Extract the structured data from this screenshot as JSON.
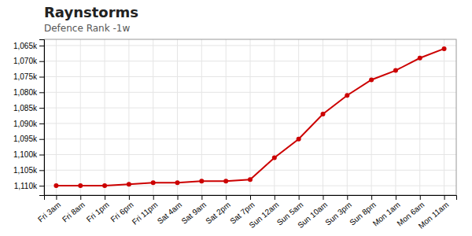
{
  "chart_data": {
    "type": "line",
    "title": "Raynstorms",
    "subtitle": "Defence Rank -1w",
    "categories": [
      "Fri 3am",
      "Fri 8am",
      "Fri 1pm",
      "Fri 6pm",
      "Fri 11pm",
      "Sat 4am",
      "Sat 9am",
      "Sat 2pm",
      "Sat 7pm",
      "Sun 12am",
      "Sun 5am",
      "Sun 10am",
      "Sun 3pm",
      "Sun 8pm",
      "Mon 1am",
      "Mon 6am",
      "Mon 11am"
    ],
    "values": [
      1110000,
      1110000,
      1110000,
      1109500,
      1109000,
      1109000,
      1108500,
      1108500,
      1108000,
      1101000,
      1095000,
      1087000,
      1081000,
      1076000,
      1073000,
      1069000,
      1066000
    ],
    "color": "#cc0000",
    "marker": "circle",
    "ylim": [
      1113000,
      1063000
    ],
    "yticks": [
      {
        "value": 1065000,
        "label": "1,065k"
      },
      {
        "value": 1070000,
        "label": "1,070k"
      },
      {
        "value": 1075000,
        "label": "1,075k"
      },
      {
        "value": 1080000,
        "label": "1,080k"
      },
      {
        "value": 1085000,
        "label": "1,085k"
      },
      {
        "value": 1090000,
        "label": "1,090k"
      },
      {
        "value": 1095000,
        "label": "1,095k"
      },
      {
        "value": 1100000,
        "label": "1,100k"
      },
      {
        "value": 1105000,
        "label": "1,105k"
      },
      {
        "value": 1110000,
        "label": "1,110k"
      }
    ],
    "grid": true
  }
}
